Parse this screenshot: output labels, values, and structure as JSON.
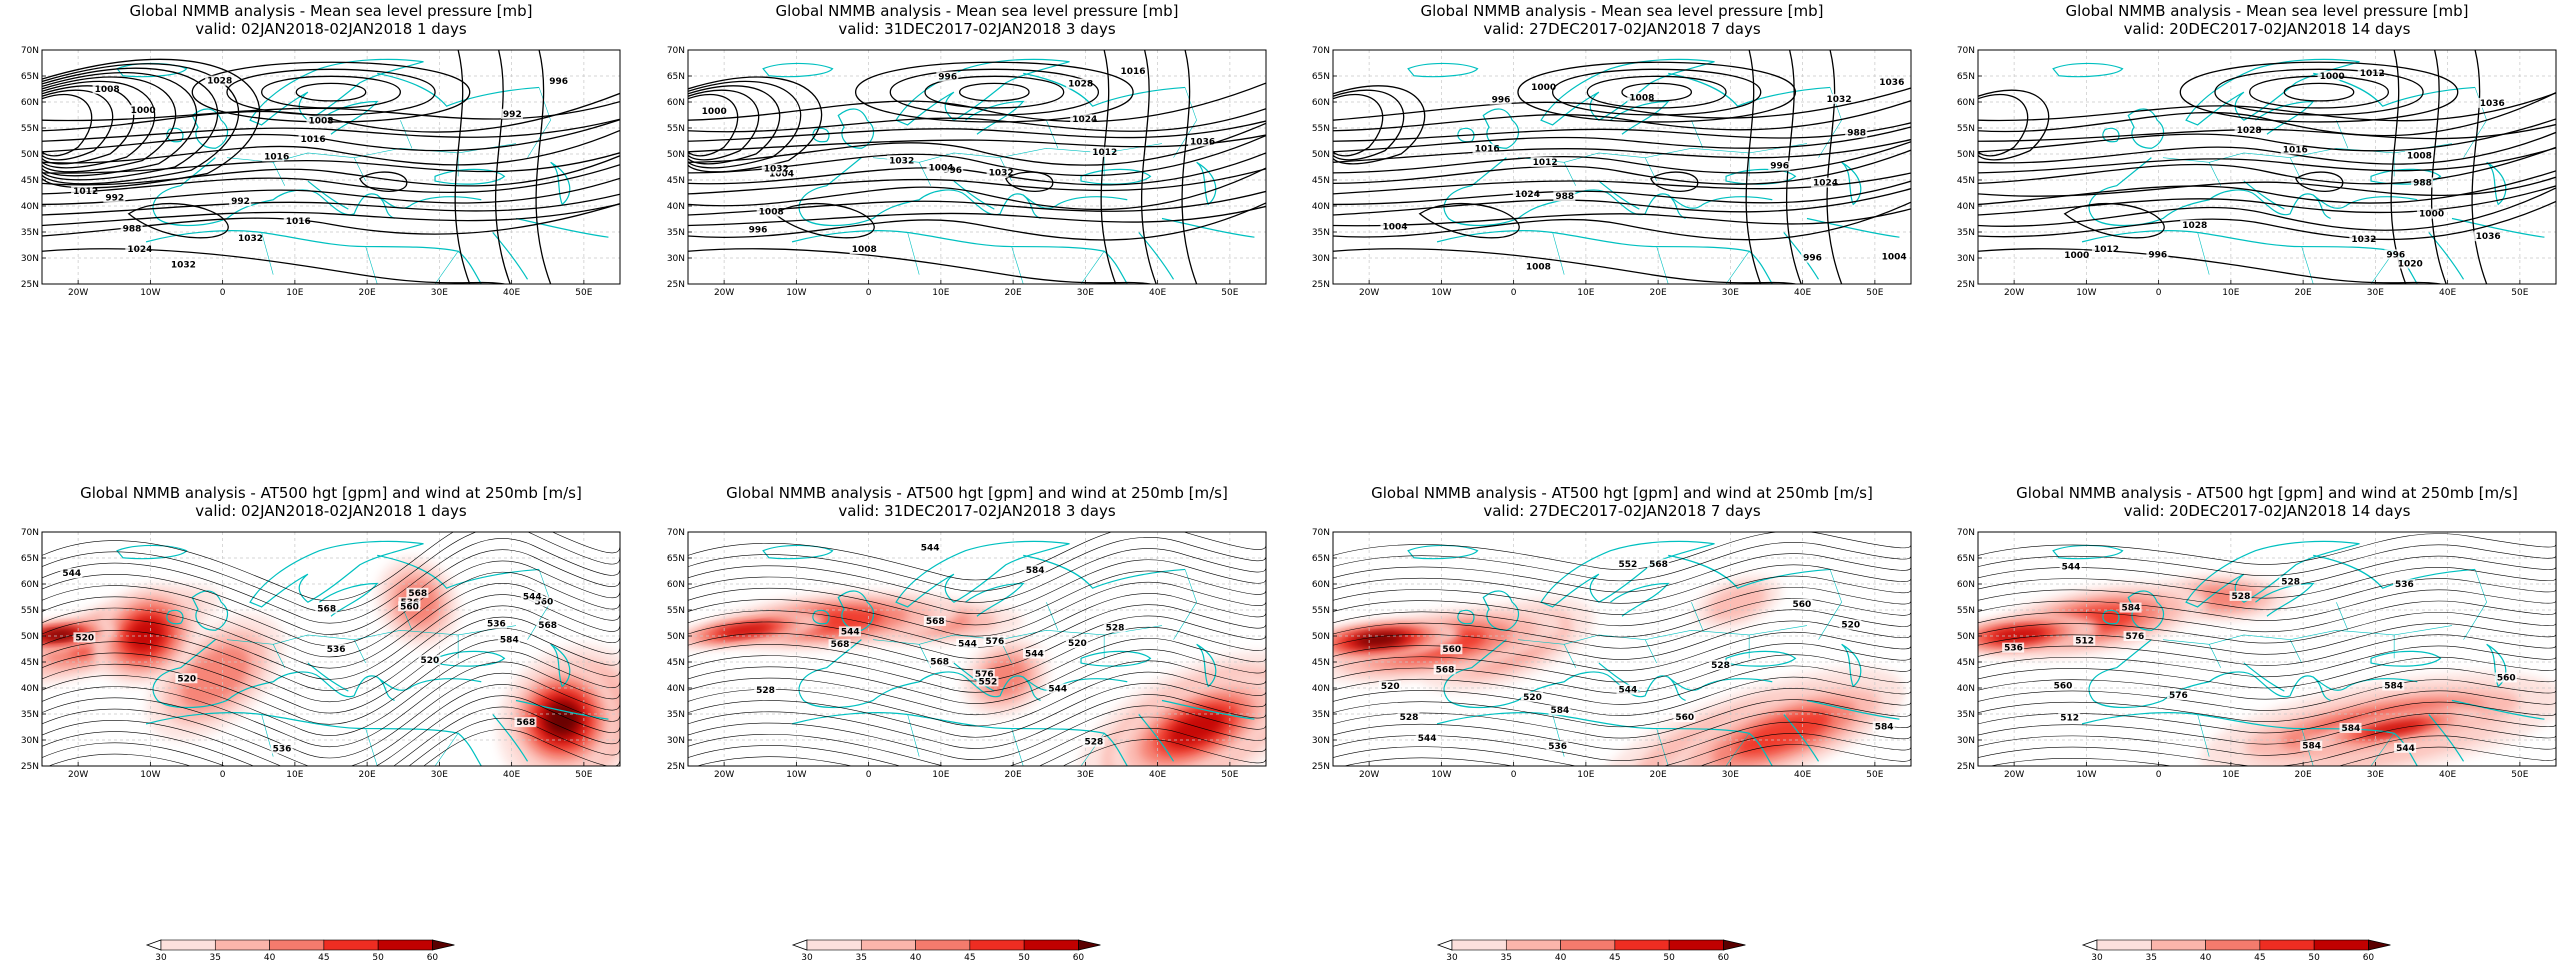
{
  "figure": {
    "rows": [
      {
        "kind": "mslp",
        "panels": [
          {
            "title": "Global NMMB analysis - Mean sea level pressure [mb]",
            "subtitle": "valid: 02JAN2018-02JAN2018   1 days"
          },
          {
            "title": "Global NMMB analysis - Mean sea level pressure [mb]",
            "subtitle": "valid: 31DEC2017-02JAN2018   3 days"
          },
          {
            "title": "Global NMMB analysis - Mean sea level pressure [mb]",
            "subtitle": "valid: 27DEC2017-02JAN2018   7 days"
          },
          {
            "title": "Global NMMB analysis - Mean sea level pressure [mb]",
            "subtitle": "valid: 20DEC2017-02JAN2018  14 days"
          }
        ]
      },
      {
        "kind": "z500",
        "panels": [
          {
            "title": "Global NMMB analysis - AT500 hgt [gpm] and wind at 250mb [m/s]",
            "subtitle": "valid: 02JAN2018-02JAN2018   1 days"
          },
          {
            "title": "Global NMMB analysis - AT500 hgt [gpm] and wind at 250mb [m/s]",
            "subtitle": "valid: 31DEC2017-02JAN2018   3 days"
          },
          {
            "title": "Global NMMB analysis - AT500 hgt [gpm] and wind at 250mb [m/s]",
            "subtitle": "valid: 27DEC2017-02JAN2018   7 days"
          },
          {
            "title": "Global NMMB analysis - AT500 hgt [gpm] and wind at 250mb [m/s]",
            "subtitle": "valid: 20DEC2017-02JAN2018  14 days"
          }
        ]
      }
    ],
    "lat_ticks": [
      "70N",
      "65N",
      "60N",
      "55N",
      "50N",
      "45N",
      "40N",
      "35N",
      "30N",
      "25N"
    ],
    "lon_ticks": [
      "20W",
      "10W",
      "0",
      "10E",
      "20E",
      "30E",
      "40E",
      "50E"
    ],
    "extent": {
      "lon": [
        -25,
        55
      ],
      "lat": [
        25,
        70
      ]
    },
    "mslp_labels": [
      "1036",
      "1032",
      "1028",
      "1024",
      "1020",
      "1016",
      "1012",
      "1008",
      "1004",
      "1000",
      "996",
      "992",
      "988"
    ],
    "z500_labels": [
      "512",
      "520",
      "528",
      "536",
      "544",
      "552",
      "560",
      "568",
      "576",
      "584"
    ],
    "colorbar": {
      "ticks": [
        "30",
        "35",
        "40",
        "45",
        "50",
        "60"
      ],
      "colors": [
        "#ffffff",
        "#fde0dc",
        "#fbb5ab",
        "#f57b6d",
        "#ee2d22",
        "#c00000",
        "#5a0000"
      ]
    },
    "colors": {
      "coast": "#00c0c0",
      "contour": "#000000",
      "grid": "#c8c8c8"
    }
  }
}
